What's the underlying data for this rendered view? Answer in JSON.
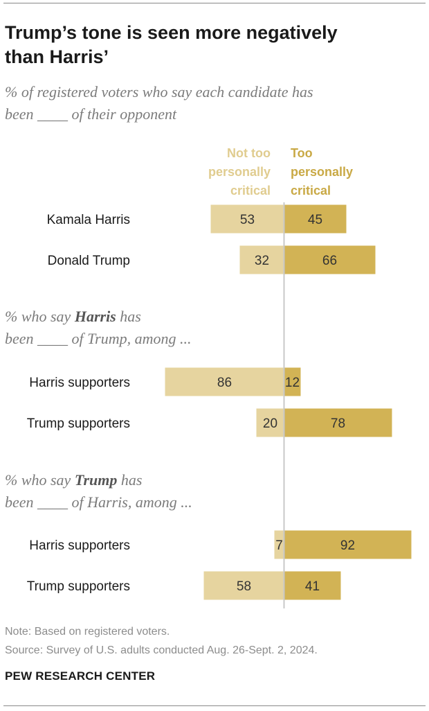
{
  "header": {
    "title_line1": "Trump’s tone is seen more negatively",
    "title_line2": "than Harris’",
    "subtitle_line1": "% of registered voters who say each candidate has",
    "subtitle_line2": "been ____ of their opponent"
  },
  "legend": {
    "left_line1": "Not too",
    "left_line2": "personally",
    "left_line3": "critical",
    "right_line1": "Too",
    "right_line2": "personally",
    "right_line3": "critical"
  },
  "sections": {
    "harris_prefix": "% who say ",
    "harris_bold": "Harris",
    "harris_suffix": " has",
    "harris_line2": "been ____ of Trump, among ...",
    "trump_prefix": "% who say ",
    "trump_bold": "Trump",
    "trump_suffix": " has",
    "trump_line2": "been ____ of Harris, among ..."
  },
  "colors": {
    "not_too": "#e6d49f",
    "too": "#d2b355",
    "left_label": "#e0cc8f",
    "right_label": "#c9a945",
    "divider": "#c8c8c8",
    "value_text": "#333333"
  },
  "chart_data": {
    "type": "bar",
    "orientation": "horizontal-diverging",
    "series": [
      {
        "name": "Not too personally critical",
        "color": "#e6d49f"
      },
      {
        "name": "Too personally critical",
        "color": "#d2b355"
      }
    ],
    "groups": [
      {
        "rows": [
          {
            "label": "Kamala Harris",
            "not_too": 53,
            "too": 45
          },
          {
            "label": "Donald Trump",
            "not_too": 32,
            "too": 66
          }
        ]
      },
      {
        "rows": [
          {
            "label": "Harris supporters",
            "not_too": 86,
            "too": 12
          },
          {
            "label": "Trump supporters",
            "not_too": 20,
            "too": 78
          }
        ]
      },
      {
        "rows": [
          {
            "label": "Harris supporters",
            "not_too": 7,
            "too": 92
          },
          {
            "label": "Trump supporters",
            "not_too": 58,
            "too": 41
          }
        ]
      }
    ]
  },
  "footer": {
    "note": "Note: Based on registered voters.",
    "source": "Source: Survey of U.S. adults conducted Aug. 26-Sept. 2, 2024.",
    "brand": "PEW RESEARCH CENTER"
  }
}
